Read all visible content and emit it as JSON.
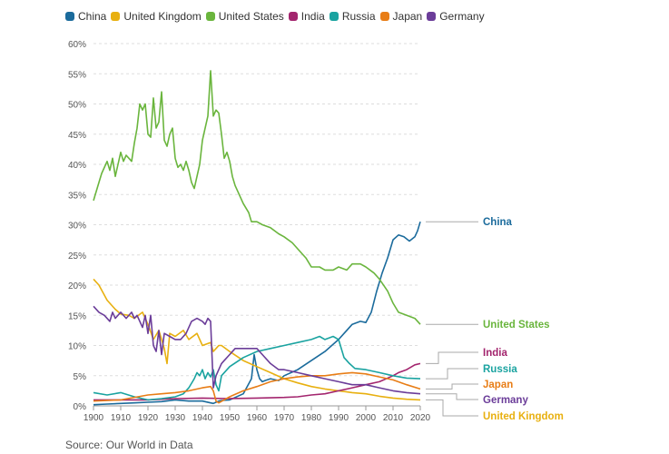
{
  "chart_data": {
    "type": "line",
    "xlim": [
      1900,
      2020
    ],
    "ylim": [
      0,
      60
    ],
    "x_ticks": [
      "1900",
      "1910",
      "1920",
      "1930",
      "1940",
      "1950",
      "1960",
      "1970",
      "1980",
      "1990",
      "2000",
      "2010",
      "2020"
    ],
    "y_ticks": [
      "0%",
      "5%",
      "10%",
      "15%",
      "20%",
      "25%",
      "30%",
      "35%",
      "40%",
      "45%",
      "50%",
      "55%",
      "60%"
    ],
    "grid": true,
    "legend_placement": "top-left",
    "source": "Source: Our World in Data",
    "series": [
      {
        "name": "China",
        "color": "#1b6b9c",
        "end_label": "China",
        "x": [
          1900,
          1905,
          1910,
          1915,
          1920,
          1925,
          1930,
          1935,
          1940,
          1943,
          1944,
          1945,
          1946,
          1947,
          1950,
          1955,
          1958,
          1959,
          1960,
          1961,
          1962,
          1963,
          1965,
          1968,
          1970,
          1975,
          1980,
          1985,
          1990,
          1995,
          1998,
          2000,
          2002,
          2004,
          2006,
          2008,
          2010,
          2012,
          2014,
          2016,
          2018,
          2019,
          2020
        ],
        "y": [
          0.2,
          0.3,
          0.4,
          0.5,
          0.6,
          0.7,
          1.0,
          0.8,
          0.8,
          0.5,
          0.4,
          0.6,
          0.8,
          0.9,
          1.0,
          2.0,
          4.5,
          8.5,
          6.0,
          4.5,
          4.0,
          4.2,
          4.5,
          4.2,
          5.0,
          6.0,
          7.5,
          9.0,
          11.0,
          13.5,
          14.0,
          13.8,
          15.5,
          19.0,
          22.0,
          24.5,
          27.5,
          28.3,
          28.0,
          27.3,
          28.0,
          29.0,
          30.5
        ]
      },
      {
        "name": "United Kingdom",
        "color": "#e8b010",
        "end_label": "United Kingdom",
        "x": [
          1900,
          1902,
          1905,
          1908,
          1910,
          1913,
          1915,
          1918,
          1920,
          1922,
          1924,
          1926,
          1927,
          1928,
          1930,
          1933,
          1935,
          1938,
          1940,
          1943,
          1944,
          1945,
          1946,
          1947,
          1950,
          1955,
          1960,
          1965,
          1970,
          1975,
          1980,
          1985,
          1990,
          1995,
          2000,
          2005,
          2010,
          2015,
          2020
        ],
        "y": [
          21.0,
          20.0,
          17.5,
          16.0,
          15.2,
          15.0,
          14.5,
          15.5,
          13.5,
          11.0,
          12.5,
          9.5,
          7.0,
          12.0,
          11.5,
          12.5,
          11.0,
          12.0,
          10.0,
          10.5,
          9.0,
          9.5,
          10.0,
          10.0,
          9.0,
          7.5,
          6.5,
          5.5,
          4.5,
          3.8,
          3.2,
          2.8,
          2.5,
          2.2,
          2.0,
          1.6,
          1.3,
          1.1,
          1.0
        ]
      },
      {
        "name": "United States",
        "color": "#6ab53d",
        "end_label": "United States",
        "x": [
          1900,
          1902,
          1903,
          1905,
          1906,
          1907,
          1908,
          1909,
          1910,
          1911,
          1912,
          1913,
          1914,
          1915,
          1916,
          1917,
          1918,
          1919,
          1920,
          1921,
          1922,
          1923,
          1924,
          1925,
          1926,
          1927,
          1928,
          1929,
          1930,
          1931,
          1932,
          1933,
          1934,
          1935,
          1936,
          1937,
          1938,
          1939,
          1940,
          1941,
          1942,
          1943,
          1944,
          1945,
          1946,
          1947,
          1948,
          1949,
          1950,
          1951,
          1952,
          1953,
          1955,
          1957,
          1958,
          1960,
          1962,
          1965,
          1968,
          1970,
          1973,
          1975,
          1978,
          1980,
          1983,
          1985,
          1988,
          1990,
          1993,
          1995,
          1998,
          2000,
          2003,
          2005,
          2008,
          2010,
          2012,
          2015,
          2018,
          2020
        ],
        "y": [
          34.0,
          37.0,
          38.5,
          40.5,
          39.0,
          41.0,
          38.0,
          40.0,
          42.0,
          40.5,
          41.5,
          41.0,
          40.5,
          43.5,
          46.0,
          50.0,
          49.0,
          50.0,
          45.0,
          44.5,
          51.0,
          46.0,
          47.0,
          52.0,
          44.0,
          43.0,
          45.0,
          46.0,
          41.0,
          39.5,
          40.0,
          39.0,
          40.5,
          39.0,
          37.0,
          36.0,
          38.0,
          40.0,
          44.0,
          46.0,
          48.0,
          55.5,
          48.0,
          49.0,
          48.5,
          45.0,
          41.0,
          42.0,
          40.5,
          38.0,
          36.5,
          35.5,
          33.5,
          32.0,
          30.5,
          30.5,
          30.0,
          29.5,
          28.5,
          28.0,
          27.0,
          26.0,
          24.5,
          23.0,
          23.0,
          22.5,
          22.5,
          23.0,
          22.5,
          23.5,
          23.5,
          23.0,
          22.0,
          21.0,
          19.0,
          17.0,
          15.5,
          15.0,
          14.5,
          13.5
        ]
      },
      {
        "name": "India",
        "color": "#a3256e",
        "end_label": "India",
        "x": [
          1900,
          1910,
          1920,
          1930,
          1940,
          1950,
          1960,
          1970,
          1975,
          1980,
          1985,
          1990,
          1995,
          2000,
          2005,
          2010,
          2012,
          2015,
          2018,
          2020
        ],
        "y": [
          1.0,
          1.0,
          1.0,
          1.2,
          1.3,
          1.2,
          1.3,
          1.4,
          1.5,
          1.8,
          2.0,
          2.5,
          3.0,
          3.5,
          4.0,
          5.0,
          5.5,
          6.0,
          6.8,
          7.0
        ]
      },
      {
        "name": "Russia",
        "color": "#1aa3a0",
        "end_label": "Russia",
        "x": [
          1900,
          1905,
          1910,
          1915,
          1920,
          1925,
          1930,
          1933,
          1935,
          1937,
          1938,
          1939,
          1940,
          1941,
          1942,
          1943,
          1944,
          1945,
          1946,
          1947,
          1950,
          1955,
          1960,
          1965,
          1970,
          1975,
          1980,
          1983,
          1985,
          1988,
          1990,
          1992,
          1994,
          1996,
          2000,
          2005,
          2010,
          2015,
          2020
        ],
        "y": [
          2.2,
          1.8,
          2.2,
          1.5,
          1.0,
          1.2,
          1.5,
          2.0,
          3.0,
          4.5,
          5.5,
          5.0,
          6.0,
          4.5,
          5.5,
          4.8,
          6.0,
          3.5,
          2.5,
          5.0,
          6.5,
          8.0,
          9.0,
          9.5,
          10.0,
          10.5,
          11.0,
          11.5,
          11.0,
          11.5,
          11.0,
          8.0,
          7.0,
          6.2,
          6.0,
          5.5,
          5.0,
          4.6,
          4.5
        ]
      },
      {
        "name": "Japan",
        "color": "#e87d16",
        "end_label": "Japan",
        "x": [
          1900,
          1910,
          1920,
          1925,
          1930,
          1935,
          1940,
          1943,
          1944,
          1945,
          1946,
          1950,
          1955,
          1960,
          1965,
          1970,
          1975,
          1980,
          1985,
          1990,
          1995,
          2000,
          2005,
          2010,
          2015,
          2020
        ],
        "y": [
          0.8,
          1.0,
          1.8,
          2.0,
          2.2,
          2.5,
          3.0,
          3.2,
          2.5,
          0.8,
          0.5,
          1.5,
          2.5,
          3.2,
          4.0,
          4.5,
          4.8,
          5.0,
          5.0,
          5.3,
          5.5,
          5.3,
          4.8,
          4.3,
          3.5,
          2.8
        ]
      },
      {
        "name": "Germany",
        "color": "#6b3d99",
        "end_label": "Germany",
        "x": [
          1900,
          1902,
          1904,
          1906,
          1907,
          1908,
          1910,
          1912,
          1914,
          1915,
          1916,
          1918,
          1919,
          1920,
          1921,
          1922,
          1923,
          1924,
          1925,
          1926,
          1928,
          1930,
          1932,
          1934,
          1936,
          1938,
          1940,
          1941,
          1942,
          1943,
          1944,
          1945,
          1946,
          1947,
          1948,
          1950,
          1952,
          1955,
          1958,
          1960,
          1962,
          1965,
          1968,
          1970,
          1975,
          1980,
          1985,
          1990,
          1995,
          2000,
          2005,
          2010,
          2015,
          2020
        ],
        "y": [
          16.5,
          15.5,
          15.0,
          14.0,
          15.5,
          14.5,
          15.5,
          14.5,
          15.5,
          14.5,
          15.0,
          13.0,
          15.0,
          12.0,
          15.0,
          10.0,
          9.0,
          12.5,
          8.5,
          12.0,
          11.5,
          11.0,
          11.0,
          12.0,
          14.0,
          14.5,
          14.0,
          13.5,
          14.5,
          14.0,
          3.0,
          5.0,
          6.0,
          7.0,
          7.5,
          8.5,
          9.5,
          9.5,
          9.5,
          9.5,
          8.5,
          7.0,
          6.0,
          6.0,
          5.5,
          5.0,
          4.5,
          4.0,
          3.5,
          3.5,
          3.0,
          2.5,
          2.2,
          2.0
        ]
      }
    ]
  }
}
